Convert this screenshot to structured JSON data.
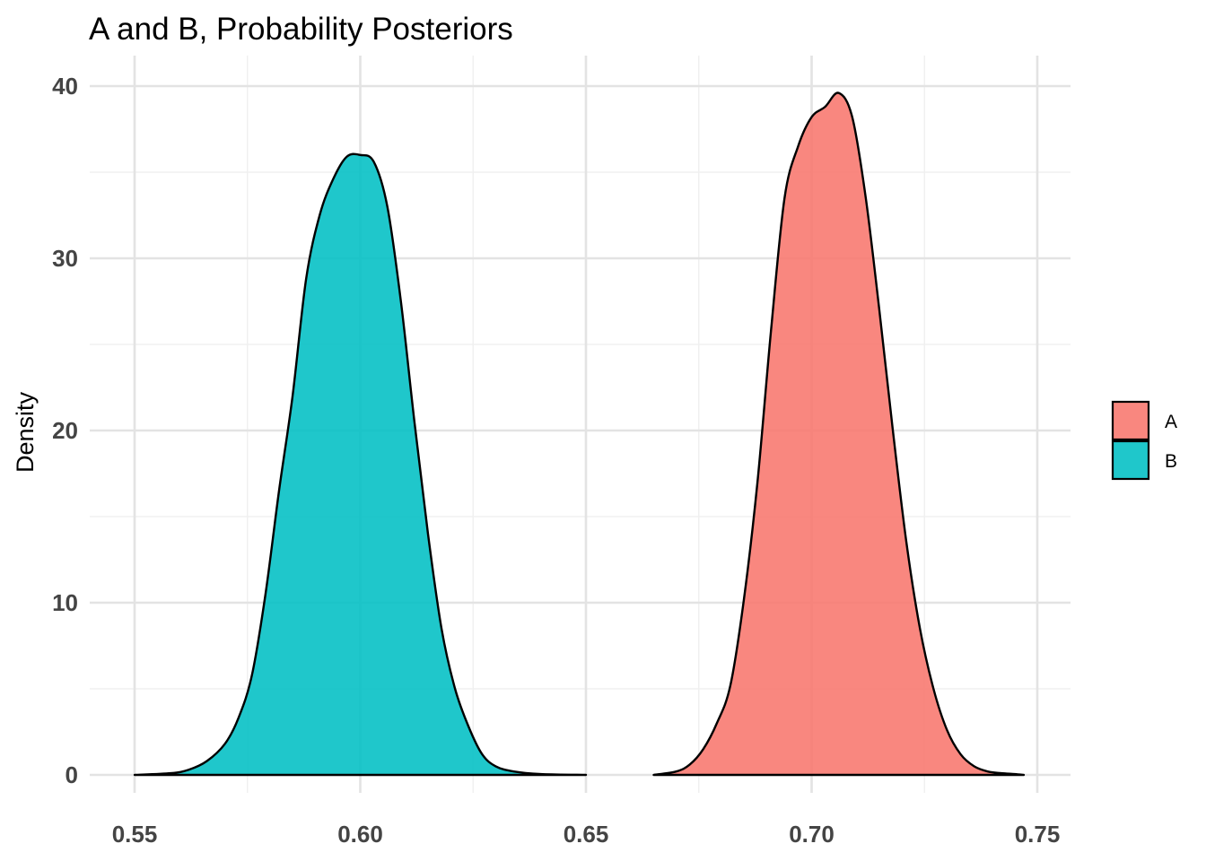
{
  "chart_data": {
    "type": "area",
    "title": "A and B, Probability Posteriors",
    "xlabel": "",
    "ylabel": "Density",
    "xlim": [
      0.55,
      0.75
    ],
    "ylim": [
      0,
      40
    ],
    "x_ticks": [
      0.55,
      0.6,
      0.65,
      0.7,
      0.75
    ],
    "x_tick_labels": [
      "0.55",
      "0.60",
      "0.65",
      "0.70",
      "0.75"
    ],
    "y_ticks": [
      0,
      10,
      20,
      30,
      40
    ],
    "y_tick_labels": [
      "0",
      "10",
      "20",
      "30",
      "40"
    ],
    "grid": true,
    "legend_position": "right",
    "legend": [
      "A",
      "B"
    ],
    "colors": {
      "A": "#F8766D",
      "B": "#00BFC4",
      "outline": "#000000"
    },
    "series": [
      {
        "name": "A",
        "x": [
          0.665,
          0.67,
          0.673,
          0.676,
          0.679,
          0.682,
          0.685,
          0.688,
          0.691,
          0.694,
          0.697,
          0.7,
          0.703,
          0.706,
          0.709,
          0.712,
          0.715,
          0.718,
          0.721,
          0.724,
          0.727,
          0.73,
          0.733,
          0.736,
          0.739,
          0.742,
          0.745,
          0.747
        ],
        "y": [
          0.0,
          0.2,
          0.6,
          1.5,
          3.0,
          5.2,
          10.2,
          17.0,
          25.8,
          33.5,
          36.5,
          38.2,
          38.8,
          39.6,
          38.2,
          33.5,
          27.0,
          20.0,
          13.5,
          8.5,
          5.0,
          2.6,
          1.2,
          0.5,
          0.2,
          0.1,
          0.05,
          0.0
        ]
      },
      {
        "name": "B",
        "x": [
          0.55,
          0.558,
          0.562,
          0.566,
          0.57,
          0.573,
          0.576,
          0.579,
          0.582,
          0.585,
          0.588,
          0.591,
          0.594,
          0.597,
          0.6,
          0.603,
          0.606,
          0.609,
          0.612,
          0.615,
          0.618,
          0.621,
          0.624,
          0.627,
          0.63,
          0.634,
          0.64,
          0.65
        ],
        "y": [
          0.0,
          0.1,
          0.3,
          0.8,
          1.8,
          3.3,
          5.8,
          10.5,
          16.5,
          22.0,
          28.8,
          32.5,
          34.6,
          35.9,
          36.0,
          35.6,
          33.0,
          27.5,
          20.5,
          14.0,
          8.5,
          5.0,
          2.8,
          1.2,
          0.5,
          0.2,
          0.05,
          0.0
        ]
      }
    ]
  }
}
